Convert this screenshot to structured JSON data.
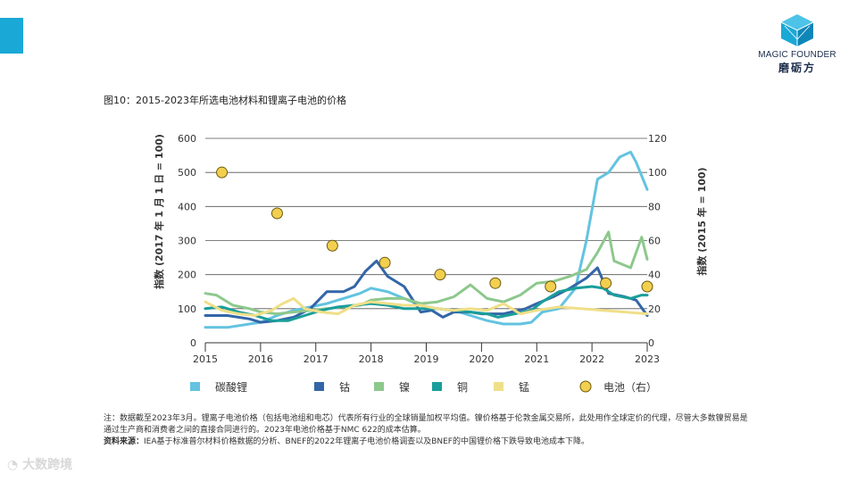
{
  "brand": {
    "name_en": "MAGIC FOUNDER",
    "name_cn": "磨砺方",
    "accent_color": "#1aa8d6"
  },
  "figure_title": "图10：2015-2023年所选电池材料和锂离子电池的价格",
  "chart_data": {
    "type": "line",
    "title": "图10：2015-2023年所选电池材料和锂离子电池的价格",
    "x_ticks": [
      "2015",
      "2016",
      "2017",
      "2018",
      "2019",
      "2020",
      "2021",
      "2022",
      "2023"
    ],
    "x_range": [
      2015,
      2023
    ],
    "y_left": {
      "label": "指数 (2017 年 1 月 1 日 = 100)",
      "range": [
        0,
        600
      ],
      "ticks": [
        0,
        100,
        200,
        300,
        400,
        500,
        600
      ]
    },
    "y_right": {
      "label": "指数 (2015 年 = 100)",
      "range": [
        0,
        120
      ],
      "ticks": [
        0,
        20,
        40,
        60,
        80,
        100,
        120
      ]
    },
    "grid": "horizontal",
    "series": [
      {
        "name": "碳酸锂",
        "color": "#63c3e0",
        "axis": "left",
        "points": [
          [
            2015,
            45
          ],
          [
            2015.4,
            45
          ],
          [
            2015.8,
            55
          ],
          [
            2016,
            60
          ],
          [
            2016.3,
            80
          ],
          [
            2016.6,
            95
          ],
          [
            2016.9,
            105
          ],
          [
            2017.2,
            115
          ],
          [
            2017.5,
            130
          ],
          [
            2017.8,
            145
          ],
          [
            2018,
            160
          ],
          [
            2018.3,
            150
          ],
          [
            2018.6,
            130
          ],
          [
            2018.9,
            110
          ],
          [
            2019.2,
            100
          ],
          [
            2019.5,
            95
          ],
          [
            2019.8,
            80
          ],
          [
            2020.1,
            65
          ],
          [
            2020.4,
            55
          ],
          [
            2020.7,
            55
          ],
          [
            2020.9,
            60
          ],
          [
            2021.1,
            90
          ],
          [
            2021.4,
            100
          ],
          [
            2021.7,
            160
          ],
          [
            2021.9,
            300
          ],
          [
            2022.1,
            480
          ],
          [
            2022.3,
            500
          ],
          [
            2022.5,
            545
          ],
          [
            2022.7,
            560
          ],
          [
            2022.8,
            530
          ],
          [
            2023,
            450
          ]
        ]
      },
      {
        "name": "钴",
        "color": "#3366a8",
        "axis": "left",
        "points": [
          [
            2015,
            80
          ],
          [
            2015.4,
            80
          ],
          [
            2015.8,
            70
          ],
          [
            2016,
            60
          ],
          [
            2016.3,
            65
          ],
          [
            2016.6,
            75
          ],
          [
            2016.9,
            100
          ],
          [
            2017.2,
            150
          ],
          [
            2017.5,
            150
          ],
          [
            2017.7,
            165
          ],
          [
            2017.9,
            210
          ],
          [
            2018,
            225
          ],
          [
            2018.1,
            240
          ],
          [
            2018.3,
            195
          ],
          [
            2018.6,
            165
          ],
          [
            2018.9,
            90
          ],
          [
            2019.1,
            95
          ],
          [
            2019.3,
            75
          ],
          [
            2019.5,
            90
          ],
          [
            2019.8,
            90
          ],
          [
            2020,
            85
          ],
          [
            2020.4,
            85
          ],
          [
            2020.8,
            100
          ],
          [
            2021,
            115
          ],
          [
            2021.3,
            135
          ],
          [
            2021.6,
            160
          ],
          [
            2021.9,
            190
          ],
          [
            2022.1,
            220
          ],
          [
            2022.3,
            145
          ],
          [
            2022.6,
            135
          ],
          [
            2022.8,
            125
          ],
          [
            2023,
            80
          ]
        ]
      },
      {
        "name": "镍",
        "color": "#8dc88d",
        "axis": "left",
        "points": [
          [
            2015,
            145
          ],
          [
            2015.2,
            140
          ],
          [
            2015.5,
            110
          ],
          [
            2015.8,
            100
          ],
          [
            2016,
            90
          ],
          [
            2016.3,
            85
          ],
          [
            2016.6,
            90
          ],
          [
            2016.9,
            95
          ],
          [
            2017.2,
            100
          ],
          [
            2017.5,
            105
          ],
          [
            2017.8,
            110
          ],
          [
            2018,
            125
          ],
          [
            2018.3,
            130
          ],
          [
            2018.6,
            130
          ],
          [
            2018.9,
            115
          ],
          [
            2019.2,
            120
          ],
          [
            2019.5,
            135
          ],
          [
            2019.8,
            170
          ],
          [
            2020.1,
            130
          ],
          [
            2020.4,
            120
          ],
          [
            2020.7,
            140
          ],
          [
            2021,
            175
          ],
          [
            2021.3,
            180
          ],
          [
            2021.6,
            195
          ],
          [
            2021.9,
            215
          ],
          [
            2022.1,
            265
          ],
          [
            2022.3,
            325
          ],
          [
            2022.4,
            240
          ],
          [
            2022.7,
            220
          ],
          [
            2022.9,
            310
          ],
          [
            2023,
            245
          ]
        ]
      },
      {
        "name": "铜",
        "color": "#1a9e9a",
        "axis": "left",
        "points": [
          [
            2015,
            100
          ],
          [
            2015.3,
            105
          ],
          [
            2015.6,
            90
          ],
          [
            2015.9,
            80
          ],
          [
            2016.2,
            65
          ],
          [
            2016.5,
            65
          ],
          [
            2016.8,
            80
          ],
          [
            2017.1,
            95
          ],
          [
            2017.4,
            105
          ],
          [
            2017.7,
            110
          ],
          [
            2018,
            115
          ],
          [
            2018.3,
            110
          ],
          [
            2018.6,
            100
          ],
          [
            2018.9,
            100
          ],
          [
            2019.2,
            100
          ],
          [
            2019.5,
            95
          ],
          [
            2019.8,
            90
          ],
          [
            2020.1,
            85
          ],
          [
            2020.3,
            75
          ],
          [
            2020.6,
            85
          ],
          [
            2020.9,
            95
          ],
          [
            2021.1,
            120
          ],
          [
            2021.4,
            150
          ],
          [
            2021.7,
            160
          ],
          [
            2022,
            165
          ],
          [
            2022.2,
            160
          ],
          [
            2022.4,
            140
          ],
          [
            2022.7,
            130
          ],
          [
            2022.9,
            140
          ],
          [
            2023,
            140
          ]
        ]
      },
      {
        "name": "锰",
        "color": "#f0df88",
        "axis": "left",
        "points": [
          [
            2015,
            120
          ],
          [
            2015.3,
            95
          ],
          [
            2015.6,
            85
          ],
          [
            2015.9,
            80
          ],
          [
            2016.2,
            95
          ],
          [
            2016.4,
            115
          ],
          [
            2016.6,
            130
          ],
          [
            2016.8,
            100
          ],
          [
            2017.1,
            90
          ],
          [
            2017.4,
            85
          ],
          [
            2017.7,
            110
          ],
          [
            2018,
            120
          ],
          [
            2018.3,
            115
          ],
          [
            2018.6,
            110
          ],
          [
            2018.9,
            110
          ],
          [
            2019.2,
            100
          ],
          [
            2019.5,
            95
          ],
          [
            2019.8,
            100
          ],
          [
            2020.1,
            95
          ],
          [
            2020.4,
            115
          ],
          [
            2020.7,
            85
          ],
          [
            2021,
            95
          ],
          [
            2021.4,
            105
          ],
          [
            2021.8,
            100
          ],
          [
            2022.2,
            95
          ],
          [
            2022.6,
            90
          ],
          [
            2023,
            85
          ]
        ]
      },
      {
        "name": "电池（右）",
        "color": "#f2cf4e",
        "stroke": "#6b5a12",
        "axis": "right",
        "marker": "circle",
        "points": [
          [
            2015.3,
            100
          ],
          [
            2016.3,
            76
          ],
          [
            2017.3,
            57
          ],
          [
            2018.25,
            47
          ],
          [
            2019.25,
            40
          ],
          [
            2020.25,
            35
          ],
          [
            2021.25,
            33
          ],
          [
            2022.25,
            35
          ],
          [
            2023,
            33
          ]
        ]
      }
    ],
    "legend": {
      "position": "bottom",
      "items": [
        "碳酸锂",
        "钴",
        "镍",
        "铜",
        "锰",
        "电池（右）"
      ]
    }
  },
  "notes": {
    "note": "注：数据截至2023年3月。锂离子电池价格（包括电池组和电芯）代表所有行业的全球销量加权平均值。镍价格基于伦敦金属交易所，此处用作全球定价的代理，尽管大多数镍贸易是通过生产商和消费者之间的直接合同进行的。2023年电池价格基于NMC 622的成本估算。",
    "source_label": "资料来源：",
    "source": "IEA基于标准普尔材料价格数据的分析、BNEF的2022年锂离子电池价格调查以及BNEF的中国锂价格下跌导致电池成本下降。"
  },
  "watermark": "大数跨境"
}
